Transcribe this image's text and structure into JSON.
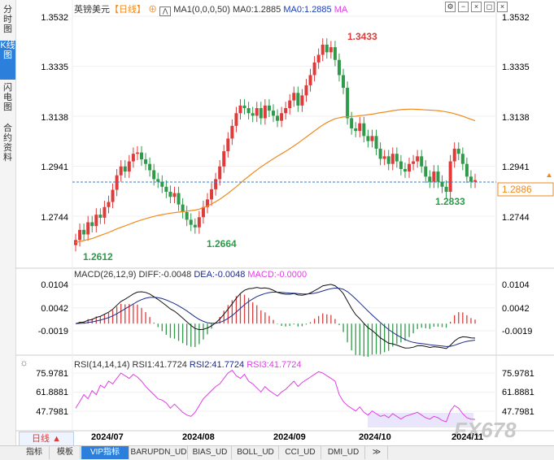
{
  "side_tabs": [
    "分时图",
    "K线图",
    "闪电图",
    "合约资料"
  ],
  "header": {
    "symbol": "英镑美元",
    "period_tag": "【日线】",
    "ma_settings": "MA1(0,0,0,50)",
    "ma0_label": "MA0:1.2885",
    "ma0_blue": "MA0:1.2885",
    "ma_tag": "MA",
    "toolbar_icons": [
      "settings-icon",
      "minus-icon",
      "close-icon",
      "restore-icon",
      "close-icon-2"
    ]
  },
  "price_axis": [
    "1.3532",
    "1.3335",
    "1.3138",
    "1.2941",
    "1.2744"
  ],
  "current_price": "1.2886",
  "annotations": {
    "high": "1.3433",
    "low_start": "1.2612",
    "low_aug": "1.2664",
    "low_recent": "1.2833"
  },
  "macd": {
    "label": "MACD(26,12,9)",
    "diff": "DIFF:-0.0048",
    "dea": "DEA:-0.0048",
    "macd": "MACD:-0.0000",
    "axis": [
      "0.0104",
      "0.0042",
      "-0.0019"
    ]
  },
  "rsi": {
    "label": "RSI(14,14,14)",
    "rsi1": "RSI1:41.7724",
    "rsi2": "RSI2:41.7724",
    "rsi3": "RSI3:41.7724",
    "axis": [
      "75.9781",
      "61.8881",
      "47.7981"
    ]
  },
  "date_axis": [
    "2024/07",
    "2024/08",
    "2024/09",
    "2024/10",
    "2024/11"
  ],
  "period_selector": "日线 ▲",
  "watermark": "FX678",
  "bottom_tabs": [
    "指标",
    "模板",
    "VIP指标",
    "BARUPDN_UD",
    "BIAS_UD",
    "BOLL_UD",
    "CCI_UD",
    "DMI_UD",
    "≫"
  ],
  "colors": {
    "up": "#e03b3b",
    "down": "#2e9a4a",
    "ma": "#f08a1c",
    "diff": "#000000",
    "dea": "#1a2a8c",
    "rsi": "#e23de6",
    "accent": "#2d7fdc"
  },
  "chart_data": {
    "type": "candlestick",
    "title": "英镑美元 日线",
    "x": [
      "2024/07",
      "2024/08",
      "2024/09",
      "2024/10",
      "2024/11"
    ],
    "marked_prices": {
      "high": 1.3433,
      "lows": [
        1.2612,
        1.2664,
        1.2833
      ]
    },
    "last_price": 1.2886,
    "ylim": [
      1.262,
      1.3532
    ],
    "closes": [
      1.265,
      1.269,
      1.2672,
      1.272,
      1.2705,
      1.275,
      1.2738,
      1.278,
      1.28,
      1.2848,
      1.2905,
      1.294,
      1.292,
      1.296,
      1.299,
      1.2995,
      1.2968,
      1.295,
      1.2925,
      1.289,
      1.288,
      1.286,
      1.284,
      1.282,
      1.2835,
      1.279,
      1.276,
      1.273,
      1.271,
      1.27,
      1.274,
      1.278,
      1.281,
      1.285,
      1.289,
      1.294,
      1.3,
      1.305,
      1.31,
      1.315,
      1.318,
      1.317,
      1.315,
      1.314,
      1.317,
      1.313,
      1.318,
      1.316,
      1.314,
      1.312,
      1.315,
      1.317,
      1.32,
      1.323,
      1.318,
      1.322,
      1.326,
      1.33,
      1.335,
      1.338,
      1.342,
      1.339,
      1.341,
      1.336,
      1.33,
      1.325,
      1.313,
      1.309,
      1.308,
      1.311,
      1.306,
      1.304,
      1.306,
      1.301,
      1.297,
      1.298,
      1.295,
      1.299,
      1.296,
      1.293,
      1.292,
      1.295,
      1.296,
      1.298,
      1.294,
      1.29,
      1.288,
      1.292,
      1.288,
      1.286,
      1.284,
      1.296,
      1.301,
      1.299,
      1.295,
      1.29,
      1.288,
      1.2886
    ],
    "ma50": [
      1.264,
      1.2644,
      1.2648,
      1.2652,
      1.2656,
      1.2662,
      1.2668,
      1.2674,
      1.268,
      1.2687,
      1.2694,
      1.27,
      1.2706,
      1.2712,
      1.2718,
      1.2724,
      1.2729,
      1.2734,
      1.2739,
      1.2743,
      1.2747,
      1.275,
      1.2753,
      1.2756,
      1.2758,
      1.276,
      1.2762,
      1.2764,
      1.2766,
      1.2768,
      1.2772,
      1.2778,
      1.2784,
      1.2792,
      1.2801,
      1.2811,
      1.2822,
      1.2834,
      1.2847,
      1.286,
      1.2874,
      1.2888,
      1.2901,
      1.2914,
      1.2926,
      1.2938,
      1.2949,
      1.296,
      1.297,
      1.298,
      1.299,
      1.3,
      1.301,
      1.3021,
      1.3032,
      1.3044,
      1.3056,
      1.3068,
      1.308,
      1.3092,
      1.3103,
      1.3113,
      1.3121,
      1.3128,
      1.3132,
      1.3135,
      1.3136,
      1.3137,
      1.3138,
      1.314,
      1.3142,
      1.3144,
      1.3146,
      1.3149,
      1.3152,
      1.3154,
      1.3157,
      1.316,
      1.3162,
      1.3164,
      1.3165,
      1.3166,
      1.3166,
      1.3165,
      1.3164,
      1.3163,
      1.3162,
      1.3161,
      1.316,
      1.3158,
      1.3155,
      1.3152,
      1.3148,
      1.3143,
      1.3138,
      1.3132,
      1.3126,
      1.312
    ],
    "rsi": [
      50,
      55,
      60,
      57,
      63,
      60,
      67,
      65,
      70,
      68,
      72,
      76,
      74,
      72,
      75,
      73,
      70,
      66,
      63,
      60,
      57,
      56,
      54,
      50,
      53,
      50,
      47,
      45,
      44,
      47,
      52,
      57,
      60,
      63,
      66,
      68,
      72,
      76,
      78,
      74,
      72,
      75,
      70,
      68,
      65,
      62,
      66,
      63,
      61,
      59,
      62,
      64,
      67,
      70,
      66,
      69,
      71,
      73,
      75,
      77,
      76,
      74,
      72,
      70,
      60,
      55,
      52,
      50,
      48,
      51,
      47,
      45,
      48,
      46,
      44,
      45,
      43,
      46,
      44,
      42,
      44,
      45,
      46,
      47,
      45,
      43,
      42,
      44,
      43,
      41,
      40,
      48,
      52,
      50,
      46,
      43,
      42,
      41.7724
    ],
    "rsi_ylim": [
      40,
      80
    ],
    "macd_ylim": [
      -0.012,
      0.012
    ]
  }
}
